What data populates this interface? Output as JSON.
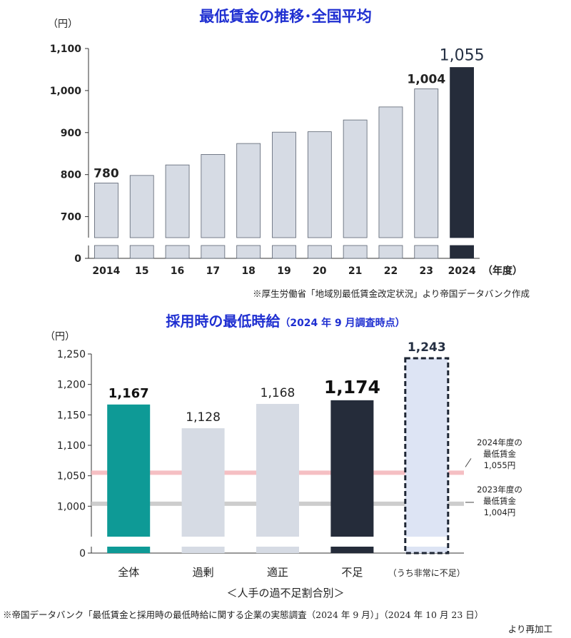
{
  "chart_data": [
    {
      "type": "bar",
      "title": "最低賃金の推移･全国平均",
      "unit_label": "（円）",
      "x_unit_label": "（年度）",
      "categories": [
        "2014",
        "15",
        "16",
        "17",
        "18",
        "19",
        "20",
        "21",
        "22",
        "23",
        "2024"
      ],
      "values": [
        780,
        798,
        823,
        848,
        874,
        901,
        902,
        930,
        961,
        1004,
        1055
      ],
      "data_labels": {
        "0": "780",
        "9": "1,004",
        "10": "1,055"
      },
      "y_ticks": [
        0,
        700,
        800,
        900,
        1000,
        1100
      ],
      "y_tick_labels": [
        "0",
        "700",
        "800",
        "900",
        "1,000",
        "1,100"
      ],
      "ylim": [
        650,
        1100
      ],
      "axis_break": true,
      "highlight_index": 10,
      "colors": {
        "bar": "#d6dbe4",
        "bar_stroke": "#5a6270",
        "highlight": "#252c3a",
        "title": "#1f2fd1"
      },
      "source_note": "※厚生労働省「地域別最低賃金改定状況」より帝国データバンク作成"
    },
    {
      "type": "bar",
      "title": "採用時の最低時給",
      "subtitle": "（2024 年 9 月調査時点）",
      "unit_label": "（円）",
      "xlabel": "＜人手の過不足割合別＞",
      "categories": [
        "全体",
        "過剰",
        "適正",
        "不足",
        "（うち非常に不足）"
      ],
      "values": [
        1167,
        1128,
        1168,
        1174,
        1243
      ],
      "data_labels": [
        "1,167",
        "1,128",
        "1,168",
        "1,174",
        "1,243"
      ],
      "y_ticks": [
        0,
        1000,
        1050,
        1100,
        1150,
        1200,
        1250
      ],
      "y_tick_labels": [
        "0",
        "1,000",
        "1,050",
        "1,100",
        "1,150",
        "1,200",
        "1,250"
      ],
      "ylim": [
        950,
        1250
      ],
      "axis_break": true,
      "reference_lines": [
        {
          "value": 1055,
          "label": [
            "2024年度の",
            "最低賃金",
            "1,055円"
          ],
          "color": "#f4b8bd"
        },
        {
          "value": 1004,
          "label": [
            "2023年度の",
            "最低賃金",
            "1,004円"
          ],
          "color": "#c8c8c8"
        }
      ],
      "colors": {
        "total": "#0e9a96",
        "normal": "#d6dbe4",
        "shortage": "#252c3a",
        "severe": "#dde4f4",
        "dashed": "#1d2533",
        "title": "#1f2fd1"
      },
      "source_note": "※帝国データバンク「最低賃金と採用時の最低時給に関する企業の実態調査（2024 年 9 月）」（2024 年 10 月 23 日）",
      "source_note2": "より再加工"
    }
  ]
}
